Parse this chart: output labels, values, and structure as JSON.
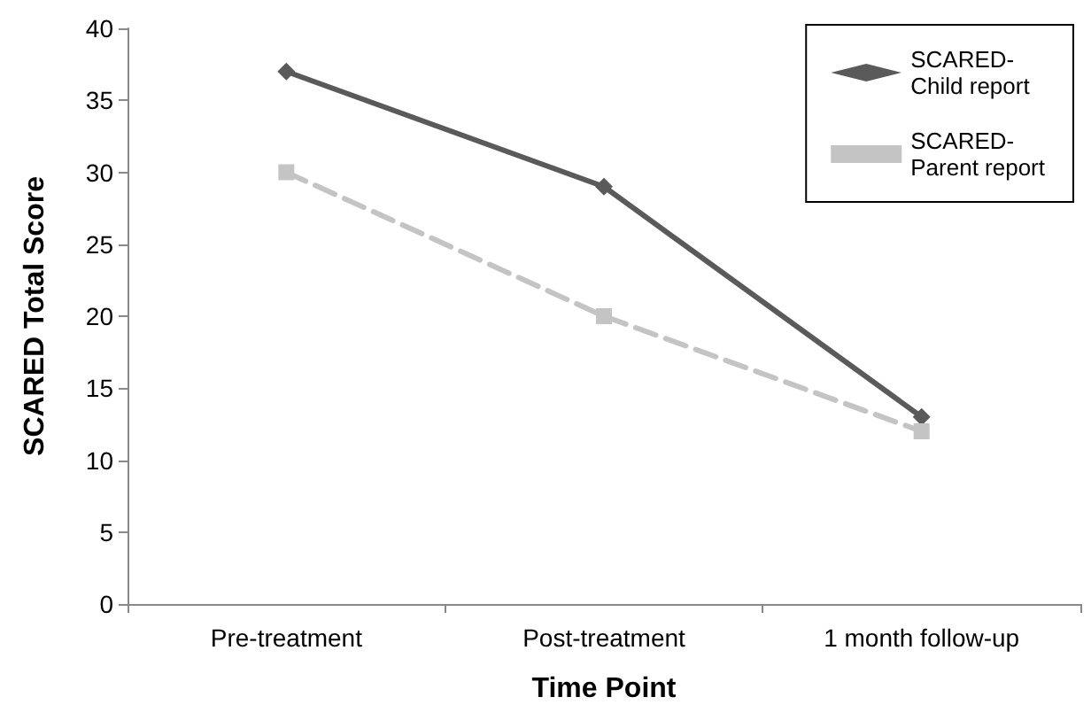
{
  "chart_data": {
    "type": "line",
    "xlabel": "Time Point",
    "ylabel": "SCARED Total Score",
    "categories": [
      "Pre-treatment",
      "Post-treatment",
      "1 month follow-up"
    ],
    "series": [
      {
        "name": "SCARED-Child report",
        "color": "#5a5a5a",
        "values": [
          37,
          29,
          13
        ],
        "marker": "diamond",
        "line_style": "solid"
      },
      {
        "name": "SCARED-Parent report",
        "color": "#c4c4c4",
        "values": [
          30,
          20,
          12
        ],
        "marker": "square",
        "line_style": "dashed"
      }
    ],
    "ylim": [
      0,
      40
    ],
    "yticks": [
      0,
      5,
      10,
      15,
      20,
      25,
      30,
      35,
      40
    ],
    "grid": false,
    "legend": "top right"
  }
}
